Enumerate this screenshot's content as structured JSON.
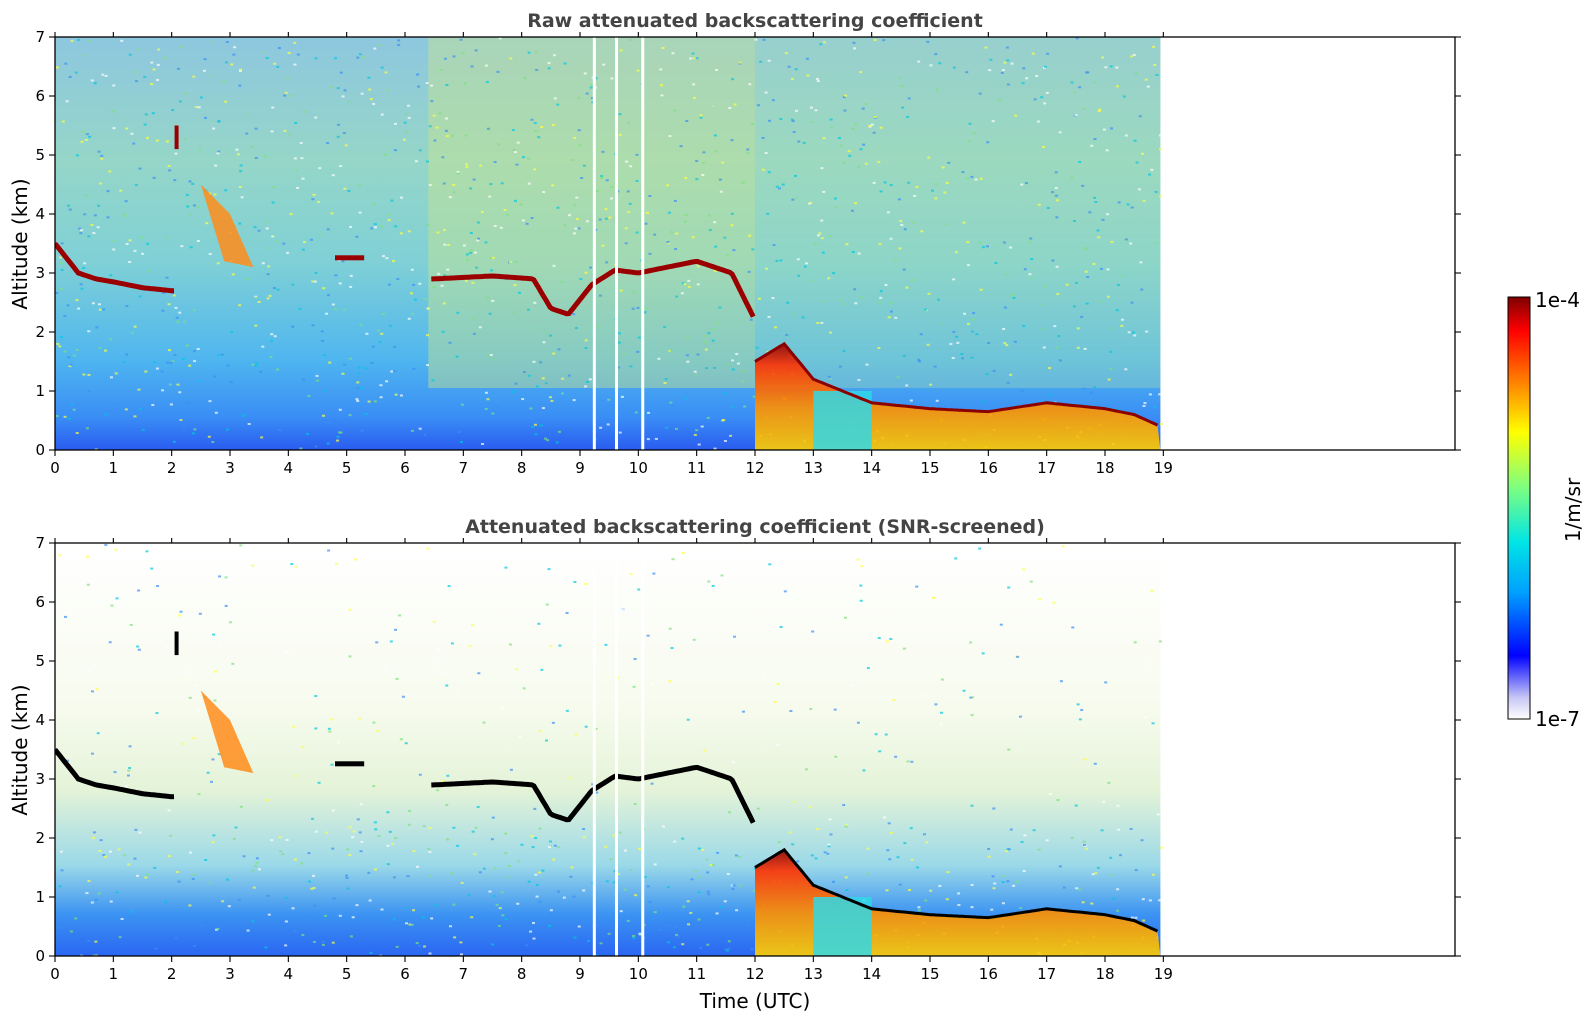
{
  "chart_data": [
    {
      "type": "heatmap",
      "title": "Raw attenuated backscattering coefficient",
      "xlabel": "",
      "ylabel": "Altitude (km)",
      "xlim": [
        0,
        24
      ],
      "ylim": [
        0,
        7
      ],
      "x_ticks": [
        "0",
        "1",
        "2",
        "3",
        "4",
        "5",
        "6",
        "7",
        "8",
        "9",
        "10",
        "11",
        "12",
        "13",
        "14",
        "15",
        "16",
        "17",
        "18",
        "19"
      ],
      "y_ticks": [
        "0",
        "1",
        "2",
        "3",
        "4",
        "5",
        "6",
        "7"
      ],
      "data_end_time": 18.95,
      "screened": false,
      "cloud_layer": {
        "time": [
          0.0,
          0.4,
          0.7,
          1.0,
          1.5,
          2.0,
          6.5,
          7.5,
          8.2,
          8.5,
          8.8,
          9.2,
          9.6,
          10.0,
          10.5,
          11.0,
          11.6,
          12.0
        ],
        "altitude_km": [
          3.5,
          3.0,
          2.9,
          2.85,
          2.75,
          2.7,
          2.9,
          2.95,
          2.9,
          2.4,
          2.3,
          2.8,
          3.05,
          3.0,
          3.1,
          3.2,
          3.0,
          2.2
        ]
      },
      "boundary_layer": {
        "time": [
          12.0,
          12.5,
          13.0,
          13.5,
          14.0,
          14.5,
          15.0,
          16.0,
          17.0,
          17.5,
          18.0,
          18.5,
          18.95
        ],
        "top_km": [
          1.5,
          1.8,
          1.2,
          1.0,
          0.8,
          0.75,
          0.7,
          0.65,
          0.8,
          0.75,
          0.7,
          0.6,
          0.4
        ]
      }
    },
    {
      "type": "heatmap",
      "title": "Attenuated backscattering coefficient (SNR-screened)",
      "xlabel": "Time (UTC)",
      "ylabel": "Altitude (km)",
      "xlim": [
        0,
        24
      ],
      "ylim": [
        0,
        7
      ],
      "x_ticks": [
        "0",
        "1",
        "2",
        "3",
        "4",
        "5",
        "6",
        "7",
        "8",
        "9",
        "10",
        "11",
        "12",
        "13",
        "14",
        "15",
        "16",
        "17",
        "18",
        "19"
      ],
      "y_ticks": [
        "0",
        "1",
        "2",
        "3",
        "4",
        "5",
        "6",
        "7"
      ],
      "data_end_time": 18.95,
      "screened": true
    }
  ],
  "colorbar": {
    "label": "1/m/sr",
    "max_label": "1e-4",
    "min_label": "1e-7",
    "scale": "log",
    "colormap": [
      "#ffffff",
      "#c8c8f5",
      "#0000ff",
      "#00a0ff",
      "#00e5e5",
      "#7fff7f",
      "#ffff00",
      "#ff8000",
      "#ff0000",
      "#800000"
    ]
  }
}
